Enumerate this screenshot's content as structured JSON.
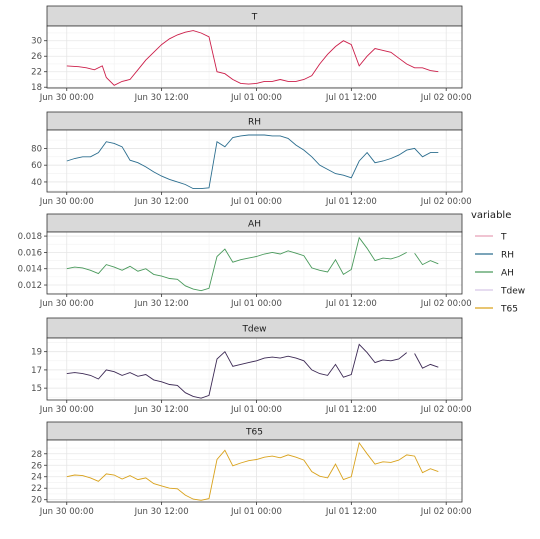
{
  "chart_data": {
    "type": "line",
    "x_tick_labels": [
      "Jun 30 00:00",
      "Jun 30 12:00",
      "Jul 01 00:00",
      "Jul 01 12:00",
      "Jul 02 00:00"
    ],
    "x_ticks_hours": [
      0,
      12,
      24,
      36,
      48
    ],
    "xlim_hours": [
      -2.5,
      50.0
    ],
    "grid": true,
    "legend": {
      "title": "variable",
      "position": "right",
      "entries": [
        {
          "label": "T",
          "color": "#e8a0b8"
        },
        {
          "label": "RH",
          "color": "#2c6e8f"
        },
        {
          "label": "AH",
          "color": "#4a9a5c"
        },
        {
          "label": "Tdew",
          "color": "#d8c8e8"
        },
        {
          "label": "T65",
          "color": "#d9a21c"
        }
      ]
    },
    "panels": [
      {
        "strip": "T",
        "series_color": "#cc1f4a",
        "ylim": [
          17.8,
          33.8
        ],
        "y_ticks": [
          18,
          22,
          26,
          30
        ],
        "x": [
          0,
          1.5,
          2.5,
          3.5,
          4.5,
          5,
          6,
          7,
          8,
          9,
          10,
          11,
          12,
          13,
          14,
          15,
          16,
          17,
          18,
          19,
          20,
          21,
          22,
          23,
          24,
          25,
          26,
          27,
          28,
          29,
          30,
          31,
          32,
          33,
          34,
          35,
          36,
          37,
          38,
          39,
          40,
          41,
          42,
          43,
          44,
          45,
          46,
          47
        ],
        "y": [
          23.5,
          23.3,
          23.0,
          22.5,
          23.5,
          20.5,
          18.5,
          19.5,
          20.0,
          22.5,
          25.0,
          27.0,
          29.0,
          30.5,
          31.5,
          32.2,
          32.6,
          32.0,
          31.0,
          22.0,
          21.5,
          20.0,
          19.0,
          18.8,
          19.0,
          19.5,
          19.5,
          20.0,
          19.5,
          19.5,
          20.0,
          21.0,
          24.0,
          26.5,
          28.5,
          30.0,
          29.0,
          23.5,
          26.0,
          28.0,
          27.5,
          27.0,
          25.5,
          24.0,
          23.0,
          23.0,
          22.3,
          22.0
        ],
        "gaps_after_hours": []
      },
      {
        "strip": "RH",
        "series_color": "#2c6e8f",
        "ylim": [
          28,
          102
        ],
        "y_ticks": [
          40,
          60,
          80
        ],
        "x": [
          0,
          1,
          2,
          3,
          4,
          5,
          6,
          7,
          8,
          9,
          10,
          11,
          12,
          13,
          14,
          15,
          16,
          17,
          18,
          19,
          20,
          21,
          22,
          23,
          24,
          25,
          26,
          27,
          28,
          29,
          30,
          31,
          32,
          33,
          34,
          35,
          36,
          37,
          38,
          39,
          40,
          41,
          42,
          43,
          44,
          45,
          46,
          47
        ],
        "y": [
          65,
          68,
          70,
          70,
          75,
          88,
          86,
          82,
          66,
          63,
          58,
          52,
          47,
          43,
          40,
          37,
          32,
          32,
          33,
          88,
          82,
          93,
          95,
          96,
          96,
          96,
          95,
          95,
          92,
          84,
          78,
          70,
          60,
          55,
          50,
          48,
          45,
          65,
          75,
          63,
          65,
          68,
          72,
          78,
          80,
          70,
          75,
          75
        ],
        "gaps_after_hours": []
      },
      {
        "strip": "AH",
        "series_color": "#4a9a5c",
        "ylim": [
          0.0109,
          0.0185
        ],
        "y_ticks": [
          0.012,
          0.014,
          0.016,
          0.018
        ],
        "x": [
          0,
          1,
          2,
          3,
          4,
          5,
          6,
          7,
          8,
          9,
          10,
          11,
          12,
          13,
          14,
          15,
          16,
          17,
          18,
          19,
          20,
          21,
          22,
          23,
          24,
          25,
          26,
          27,
          28,
          29,
          30,
          31,
          32,
          33,
          34,
          35,
          36,
          37,
          38,
          39,
          40,
          41,
          42,
          43,
          44,
          45,
          46,
          47
        ],
        "y": [
          0.014,
          0.0142,
          0.0141,
          0.0138,
          0.0134,
          0.0145,
          0.0142,
          0.0138,
          0.0143,
          0.0137,
          0.014,
          0.0133,
          0.0131,
          0.0128,
          0.0127,
          0.0119,
          0.0115,
          0.0113,
          0.0116,
          0.0155,
          0.0164,
          0.0148,
          0.0151,
          0.0153,
          0.0155,
          0.0158,
          0.016,
          0.0158,
          0.0162,
          0.0159,
          0.0156,
          0.0141,
          0.0138,
          0.0136,
          0.0151,
          0.0133,
          0.0139,
          0.0178,
          0.0165,
          0.015,
          0.0153,
          0.0152,
          0.0155,
          0.016,
          0.0159,
          0.0145,
          0.015,
          0.0146
        ],
        "gaps_after_hours": [
          43
        ]
      },
      {
        "strip": "Tdew",
        "series_color": "#3d2a55",
        "ylim": [
          13.7,
          20.5
        ],
        "y_ticks": [
          15,
          17,
          19
        ],
        "x": [
          0,
          1,
          2,
          3,
          4,
          5,
          6,
          7,
          8,
          9,
          10,
          11,
          12,
          13,
          14,
          15,
          16,
          17,
          18,
          19,
          20,
          21,
          22,
          23,
          24,
          25,
          26,
          27,
          28,
          29,
          30,
          31,
          32,
          33,
          34,
          35,
          36,
          37,
          38,
          39,
          40,
          41,
          42,
          43,
          44,
          45,
          46,
          47
        ],
        "y": [
          16.6,
          16.7,
          16.6,
          16.4,
          16.0,
          17.0,
          16.8,
          16.4,
          16.7,
          16.3,
          16.5,
          15.9,
          15.7,
          15.4,
          15.3,
          14.5,
          14.1,
          13.9,
          14.2,
          18.2,
          19.0,
          17.4,
          17.6,
          17.8,
          18.0,
          18.3,
          18.4,
          18.3,
          18.5,
          18.3,
          18.0,
          17.0,
          16.6,
          16.4,
          17.6,
          16.2,
          16.5,
          19.8,
          18.9,
          17.8,
          18.1,
          18.0,
          18.2,
          18.9,
          18.8,
          17.2,
          17.6,
          17.3
        ],
        "gaps_after_hours": [
          43
        ]
      },
      {
        "strip": "T65",
        "series_color": "#d9a21c",
        "ylim": [
          19.6,
          30.4
        ],
        "y_ticks": [
          20,
          22,
          24,
          26,
          28
        ],
        "x": [
          0,
          1,
          2,
          3,
          4,
          5,
          6,
          7,
          8,
          9,
          10,
          11,
          12,
          13,
          14,
          15,
          16,
          17,
          18,
          19,
          20,
          21,
          22,
          23,
          24,
          25,
          26,
          27,
          28,
          29,
          30,
          31,
          32,
          33,
          34,
          35,
          36,
          37,
          38,
          39,
          40,
          41,
          42,
          43,
          44,
          45,
          46,
          47
        ],
        "y": [
          24.0,
          24.3,
          24.2,
          23.8,
          23.2,
          24.5,
          24.3,
          23.6,
          24.2,
          23.5,
          23.8,
          22.8,
          22.4,
          22.0,
          21.9,
          20.8,
          20.1,
          19.9,
          20.2,
          27.0,
          28.6,
          25.9,
          26.4,
          26.8,
          27.0,
          27.4,
          27.6,
          27.3,
          27.8,
          27.4,
          26.9,
          24.9,
          24.1,
          23.8,
          26.2,
          23.5,
          24.0,
          29.9,
          28.0,
          26.2,
          26.6,
          26.5,
          26.9,
          27.8,
          27.6,
          24.7,
          25.4,
          24.9
        ],
        "gaps_after_hours": []
      }
    ]
  }
}
